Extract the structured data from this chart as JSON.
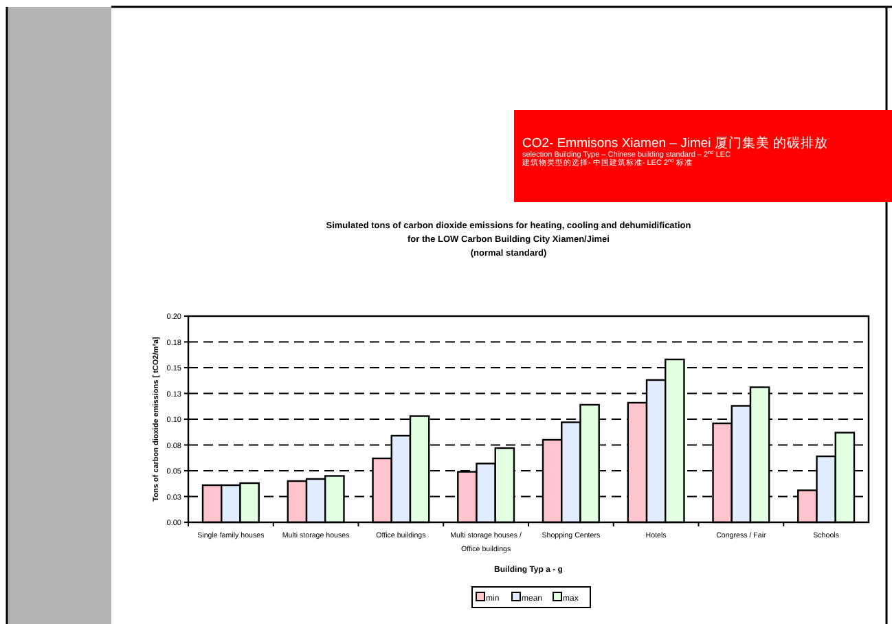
{
  "chart_data": {
    "type": "bar",
    "title": "Simulated tons of carbon dioxide emissions for heating, cooling and dehumidification\nfor the LOW Carbon Building City Xiamen/Jimei\n(normal standard)",
    "annotations": [
      "CO2- Emmisons Xiamen – Jimei 厦门集美 的碳排放",
      "selection Building Type – Chinese building standard – 2$^{nd}$ LEC",
      "建筑物类型的选择- 中国建筑标准- LEC 2$^{nd}$ 标准"
    ],
    "xlabel": "Building Typ a - g",
    "ylabel": "Tons of carbon dioxide emissions [ tCO2/m²a]",
    "categories": [
      "Single family houses",
      "Multi storage houses",
      "Office buildings",
      "Multi storage houses / Office buildings",
      "Shopping Centers",
      "Hotels",
      "Congress / Fair",
      "Schools"
    ],
    "series": [
      {
        "name": "min",
        "color": "#ffc4cc",
        "values": [
          0.036,
          0.04,
          0.062,
          0.049,
          0.08,
          0.116,
          0.096,
          0.031
        ]
      },
      {
        "name": "mean",
        "color": "#e2ecff",
        "values": [
          0.036,
          0.042,
          0.084,
          0.057,
          0.097,
          0.138,
          0.113,
          0.064
        ]
      },
      {
        "name": "max",
        "color": "#e2ffe2",
        "values": [
          0.038,
          0.045,
          0.103,
          0.072,
          0.114,
          0.158,
          0.131,
          0.087
        ]
      }
    ],
    "ylim": [
      0,
      0.2
    ],
    "yticks": [
      {
        "value": 0,
        "label": "0.00"
      },
      {
        "value": 0.025,
        "label": "0.03"
      },
      {
        "value": 0.05,
        "label": "0.05"
      },
      {
        "value": 0.075,
        "label": "0.08"
      },
      {
        "value": 0.1,
        "label": "0.10"
      },
      {
        "value": 0.125,
        "label": "0.13"
      },
      {
        "value": 0.15,
        "label": "0.15"
      },
      {
        "value": 0.175,
        "label": "0.18"
      },
      {
        "value": 0.2,
        "label": "0.20"
      }
    ],
    "grid": "y",
    "legend": "bottom"
  }
}
